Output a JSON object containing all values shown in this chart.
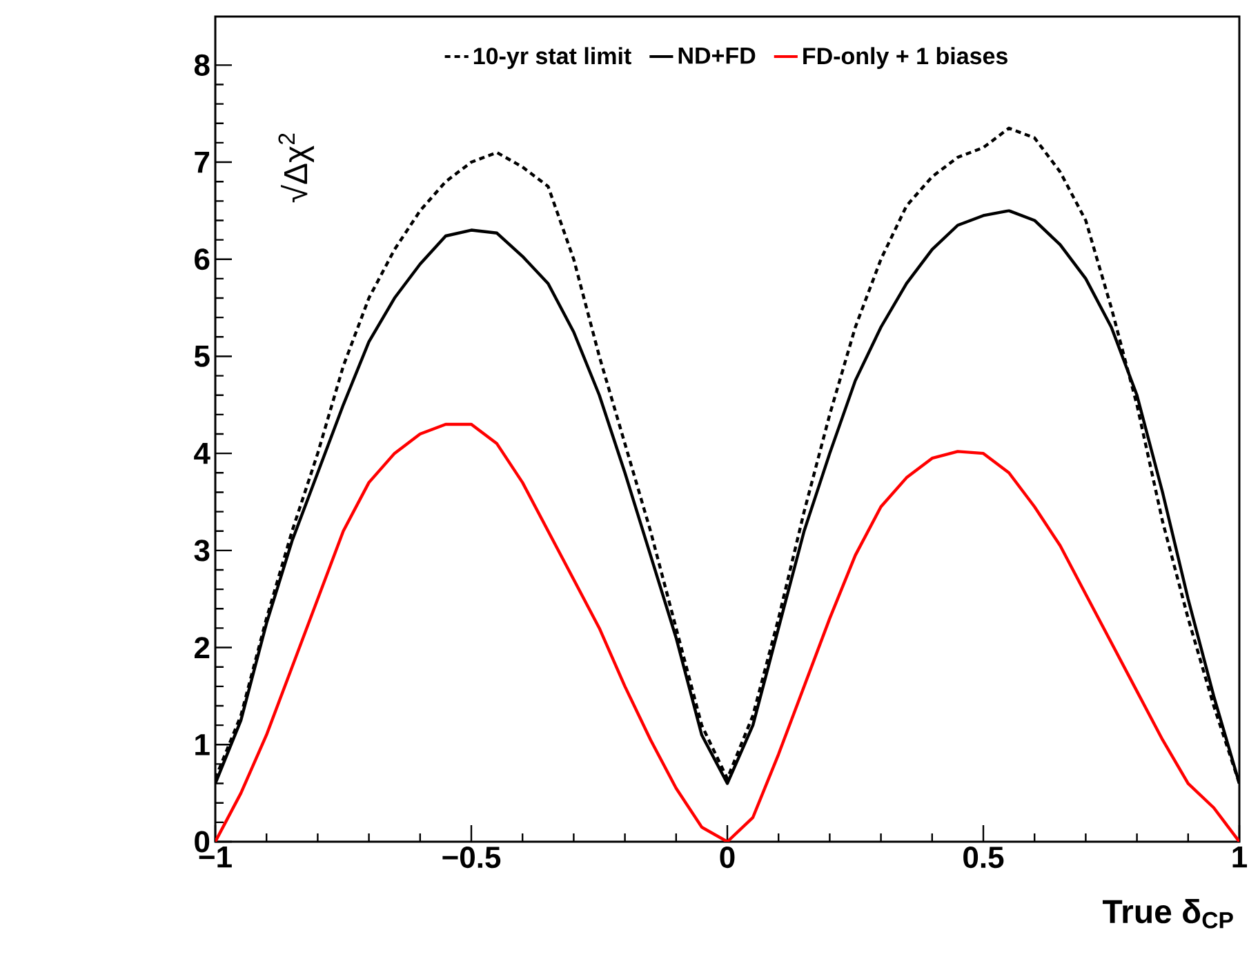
{
  "chart_data": {
    "type": "line",
    "xlabel": "True δ$_{CP}$",
    "ylabel": "√Δχ$^{2}$",
    "xlim": [
      -1,
      1
    ],
    "ylim": [
      0,
      8.5
    ],
    "xticks": [
      {
        "value": -1,
        "label": "−1"
      },
      {
        "value": -0.5,
        "label": "−0.5"
      },
      0,
      0.5,
      1
    ],
    "yticks": [
      0,
      1,
      2,
      3,
      4,
      5,
      6,
      7,
      8
    ],
    "legend": "top",
    "grid": false,
    "marker": "none",
    "x": [
      -1,
      -0.95,
      -0.9,
      -0.85,
      -0.8,
      -0.75,
      -0.7,
      -0.65,
      -0.6,
      -0.55,
      -0.5,
      -0.45,
      -0.4,
      -0.35,
      -0.3,
      -0.25,
      -0.2,
      -0.15,
      -0.1,
      -0.05,
      0,
      0.05,
      0.1,
      0.15,
      0.2,
      0.25,
      0.3,
      0.35,
      0.4,
      0.45,
      0.5,
      0.55,
      0.6,
      0.65,
      0.7,
      0.75,
      0.8,
      0.85,
      0.9,
      0.95,
      1
    ],
    "series": [
      {
        "name": "10-yr stat limit",
        "color": "#000000",
        "line_style": "dotted",
        "values": [
          0.65,
          1.3,
          2.3,
          3.2,
          4.0,
          4.9,
          5.6,
          6.1,
          6.5,
          6.8,
          7.0,
          7.1,
          6.95,
          6.75,
          6.0,
          5.0,
          4.1,
          3.2,
          2.2,
          1.2,
          0.65,
          1.3,
          2.3,
          3.4,
          4.4,
          5.3,
          6.0,
          6.55,
          6.85,
          7.05,
          7.15,
          7.35,
          7.25,
          6.9,
          6.4,
          5.5,
          4.5,
          3.3,
          2.3,
          1.4,
          0.6
        ]
      },
      {
        "name": "ND+FD",
        "color": "#000000",
        "line_style": "solid",
        "values": [
          0.6,
          1.25,
          2.25,
          3.1,
          3.8,
          4.5,
          5.15,
          5.6,
          5.95,
          6.24,
          6.3,
          6.27,
          6.03,
          5.75,
          5.25,
          4.6,
          3.8,
          2.95,
          2.1,
          1.1,
          0.6,
          1.2,
          2.2,
          3.2,
          4.0,
          4.75,
          5.3,
          5.75,
          6.1,
          6.35,
          6.45,
          6.5,
          6.4,
          6.15,
          5.8,
          5.3,
          4.6,
          3.6,
          2.5,
          1.5,
          0.6
        ]
      },
      {
        "name": "FD-only + 1 biases",
        "color": "#ff0000",
        "line_style": "solid",
        "values": [
          0,
          0.5,
          1.1,
          1.8,
          2.5,
          3.2,
          3.7,
          4.0,
          4.2,
          4.3,
          4.3,
          4.1,
          3.7,
          3.2,
          2.7,
          2.2,
          1.6,
          1.05,
          0.55,
          0.15,
          0,
          0.25,
          0.9,
          1.6,
          2.3,
          2.95,
          3.45,
          3.75,
          3.95,
          4.02,
          4.0,
          3.8,
          3.45,
          3.05,
          2.55,
          2.05,
          1.55,
          1.05,
          0.6,
          0.35,
          0
        ]
      }
    ]
  }
}
